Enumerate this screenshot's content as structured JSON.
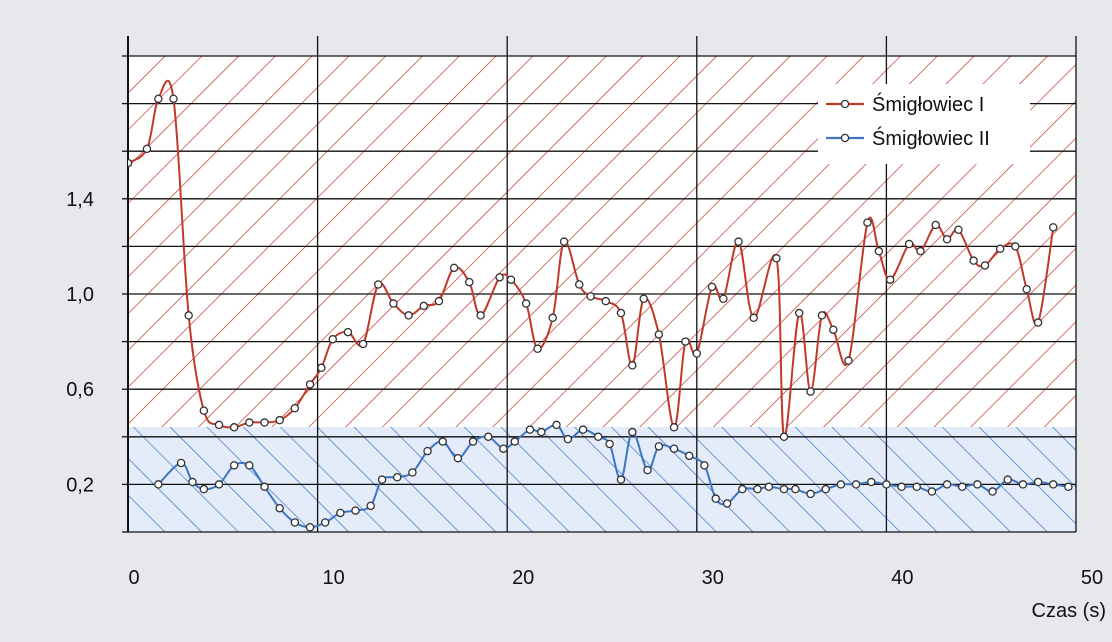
{
  "chart_data": {
    "type": "line",
    "title": "",
    "xlabel": "Czas (s)",
    "ylabel": "",
    "xlim": [
      0,
      50
    ],
    "ylim": [
      0,
      2.0
    ],
    "x_ticks": [
      0,
      10,
      20,
      30,
      40,
      50
    ],
    "x_tick_labels": [
      "0",
      "10",
      "20",
      "30",
      "40",
      "50"
    ],
    "y_ticks": [
      0.2,
      0.6,
      1.0,
      1.4
    ],
    "y_tick_labels": [
      "0,2",
      "0,6",
      "1,0",
      "1,4"
    ],
    "grid": true,
    "legend_position": "top-right",
    "series": [
      {
        "name": "Śmigłowiec I",
        "color": "#c0392b",
        "points": [
          [
            0,
            1.55
          ],
          [
            1,
            1.61
          ],
          [
            1.6,
            1.82
          ],
          [
            2.4,
            1.82
          ],
          [
            3.2,
            0.91
          ],
          [
            4,
            0.51
          ],
          [
            4.8,
            0.45
          ],
          [
            5.6,
            0.44
          ],
          [
            6.4,
            0.46
          ],
          [
            7.2,
            0.46
          ],
          [
            8,
            0.47
          ],
          [
            8.8,
            0.52
          ],
          [
            9.6,
            0.62
          ],
          [
            10.2,
            0.69
          ],
          [
            10.8,
            0.81
          ],
          [
            11.6,
            0.84
          ],
          [
            12.4,
            0.79
          ],
          [
            13.2,
            1.04
          ],
          [
            14,
            0.96
          ],
          [
            14.8,
            0.91
          ],
          [
            15.6,
            0.95
          ],
          [
            16.4,
            0.97
          ],
          [
            17.2,
            1.11
          ],
          [
            18,
            1.05
          ],
          [
            18.6,
            0.91
          ],
          [
            19.6,
            1.07
          ],
          [
            20.2,
            1.06
          ],
          [
            21,
            0.96
          ],
          [
            21.6,
            0.77
          ],
          [
            22.4,
            0.9
          ],
          [
            23,
            1.22
          ],
          [
            23.8,
            1.04
          ],
          [
            24.4,
            0.99
          ],
          [
            25.2,
            0.97
          ],
          [
            26,
            0.92
          ],
          [
            26.6,
            0.7
          ],
          [
            27.2,
            0.98
          ],
          [
            28,
            0.83
          ],
          [
            28.8,
            0.44
          ],
          [
            29.4,
            0.8
          ],
          [
            30,
            0.75
          ],
          [
            30.8,
            1.03
          ],
          [
            31.4,
            0.98
          ],
          [
            32.2,
            1.22
          ],
          [
            33,
            0.9
          ],
          [
            34.2,
            1.15
          ],
          [
            34.6,
            0.4
          ],
          [
            35.4,
            0.92
          ],
          [
            36,
            0.59
          ],
          [
            36.6,
            0.91
          ],
          [
            37.2,
            0.85
          ],
          [
            38,
            0.72
          ],
          [
            39,
            1.3
          ],
          [
            39.6,
            1.18
          ],
          [
            40.2,
            1.06
          ],
          [
            41.2,
            1.21
          ],
          [
            41.8,
            1.18
          ],
          [
            42.6,
            1.29
          ],
          [
            43.2,
            1.23
          ],
          [
            43.8,
            1.27
          ],
          [
            44.6,
            1.14
          ],
          [
            45.2,
            1.12
          ],
          [
            46,
            1.19
          ],
          [
            46.8,
            1.2
          ],
          [
            47.4,
            1.02
          ],
          [
            48,
            0.88
          ],
          [
            48.8,
            1.28
          ]
        ]
      },
      {
        "name": "Śmigłowiec II",
        "color": "#3d74c4",
        "points": [
          [
            1.6,
            0.2
          ],
          [
            2.8,
            0.29
          ],
          [
            3.4,
            0.21
          ],
          [
            4,
            0.18
          ],
          [
            4.8,
            0.2
          ],
          [
            5.6,
            0.28
          ],
          [
            6.4,
            0.28
          ],
          [
            7.2,
            0.19
          ],
          [
            8,
            0.1
          ],
          [
            8.8,
            0.04
          ],
          [
            9.6,
            0.02
          ],
          [
            10.4,
            0.04
          ],
          [
            11.2,
            0.08
          ],
          [
            12,
            0.09
          ],
          [
            12.8,
            0.11
          ],
          [
            13.4,
            0.22
          ],
          [
            14.2,
            0.23
          ],
          [
            15,
            0.25
          ],
          [
            15.8,
            0.34
          ],
          [
            16.6,
            0.38
          ],
          [
            17.4,
            0.31
          ],
          [
            18.2,
            0.38
          ],
          [
            19,
            0.4
          ],
          [
            19.8,
            0.35
          ],
          [
            20.4,
            0.38
          ],
          [
            21.2,
            0.43
          ],
          [
            21.8,
            0.42
          ],
          [
            22.6,
            0.45
          ],
          [
            23.2,
            0.39
          ],
          [
            24,
            0.43
          ],
          [
            24.8,
            0.4
          ],
          [
            25.4,
            0.37
          ],
          [
            26,
            0.22
          ],
          [
            26.6,
            0.42
          ],
          [
            27.4,
            0.26
          ],
          [
            28,
            0.36
          ],
          [
            28.8,
            0.35
          ],
          [
            29.6,
            0.32
          ],
          [
            30.4,
            0.28
          ],
          [
            31,
            0.14
          ],
          [
            31.6,
            0.12
          ],
          [
            32.4,
            0.18
          ],
          [
            33.2,
            0.18
          ],
          [
            33.8,
            0.19
          ],
          [
            34.6,
            0.18
          ],
          [
            35.2,
            0.18
          ],
          [
            36,
            0.16
          ],
          [
            36.8,
            0.18
          ],
          [
            37.6,
            0.2
          ],
          [
            38.4,
            0.2
          ],
          [
            39.2,
            0.21
          ],
          [
            40,
            0.2
          ],
          [
            40.8,
            0.19
          ],
          [
            41.6,
            0.19
          ],
          [
            42.4,
            0.17
          ],
          [
            43.2,
            0.2
          ],
          [
            44,
            0.19
          ],
          [
            44.8,
            0.2
          ],
          [
            45.6,
            0.17
          ],
          [
            46.4,
            0.22
          ],
          [
            47.2,
            0.2
          ],
          [
            48,
            0.21
          ],
          [
            48.8,
            0.2
          ],
          [
            49.6,
            0.19
          ]
        ]
      }
    ]
  },
  "colors": {
    "red_hatch": "#c0392b",
    "blue_hatch": "#3d74c4",
    "grid": "#111111",
    "background": "#e6e8ec"
  }
}
